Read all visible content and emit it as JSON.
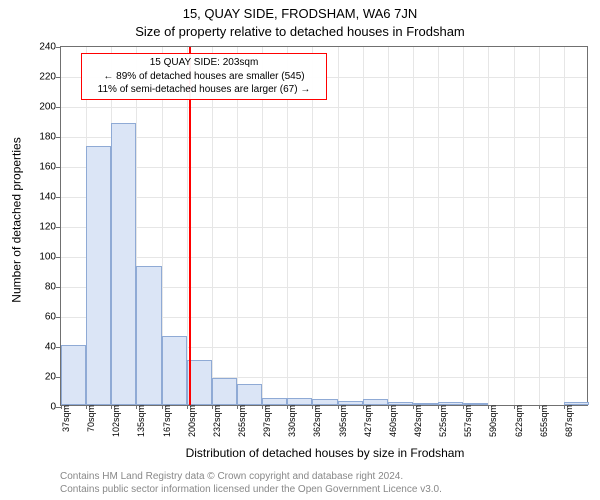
{
  "header": {
    "line1": "15, QUAY SIDE, FRODSHAM, WA6 7JN",
    "line2": "Size of property relative to detached houses in Frodsham"
  },
  "yaxis": {
    "title": "Number of detached properties",
    "min": 0,
    "max": 240,
    "step": 20
  },
  "xaxis": {
    "title": "Distribution of detached houses by size in Frodsham",
    "start_value": 37,
    "bin_width_value": 32.5,
    "tick_count": 21,
    "unit": "sqm"
  },
  "bars": {
    "values": [
      40,
      173,
      188,
      93,
      46,
      30,
      18,
      14,
      5,
      5,
      4,
      3,
      4,
      2,
      1,
      2,
      1,
      0,
      0,
      0,
      2
    ],
    "fill_color": "#dbe5f6",
    "border_color": "#8faad5",
    "border_width": 1
  },
  "reference_line": {
    "value_sqm": 203,
    "color": "#ff0000"
  },
  "annotation": {
    "line1": "15 QUAY SIDE: 203sqm",
    "line2": "← 89% of detached houses are smaller (545)",
    "line3": "11% of semi-detached houses are larger (67) →",
    "border_color": "#ff0000"
  },
  "grid_color": "#e6e6e6",
  "axis_color": "#707070",
  "footer": {
    "line1": "Contains HM Land Registry data © Crown copyright and database right 2024.",
    "line2": "Contains public sector information licensed under the Open Government Licence v3.0."
  }
}
